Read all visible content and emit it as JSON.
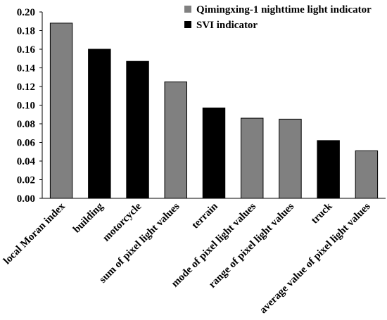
{
  "chart_data": {
    "type": "bar",
    "categories": [
      "local Moran index",
      "building",
      "motorcycle",
      "sum of pixel light values",
      "terrain",
      "mode of pixel light values",
      "range of pixel light values",
      "truck",
      "average value of pixel light values"
    ],
    "values": [
      0.188,
      0.16,
      0.147,
      0.125,
      0.097,
      0.086,
      0.085,
      0.062,
      0.051
    ],
    "category_series": [
      "Qimingxing-1 nighttime light indicator",
      "SVI indicator",
      "SVI indicator",
      "Qimingxing-1 nighttime light indicator",
      "SVI indicator",
      "Qimingxing-1 nighttime light indicator",
      "Qimingxing-1 nighttime light indicator",
      "SVI indicator",
      "Qimingxing-1 nighttime light indicator"
    ],
    "legend": [
      {
        "name": "Qimingxing-1 nighttime light indicator",
        "color": "#808080"
      },
      {
        "name": "SVI indicator",
        "color": "#000000"
      }
    ],
    "legend_position": "top-right",
    "ylim": [
      0,
      0.2
    ],
    "yticks": [
      "0.00",
      "0.02",
      "0.04",
      "0.06",
      "0.08",
      "0.10",
      "0.12",
      "0.14",
      "0.16",
      "0.18",
      "0.20"
    ],
    "grid": false,
    "title": "",
    "xlabel": "",
    "ylabel": ""
  }
}
